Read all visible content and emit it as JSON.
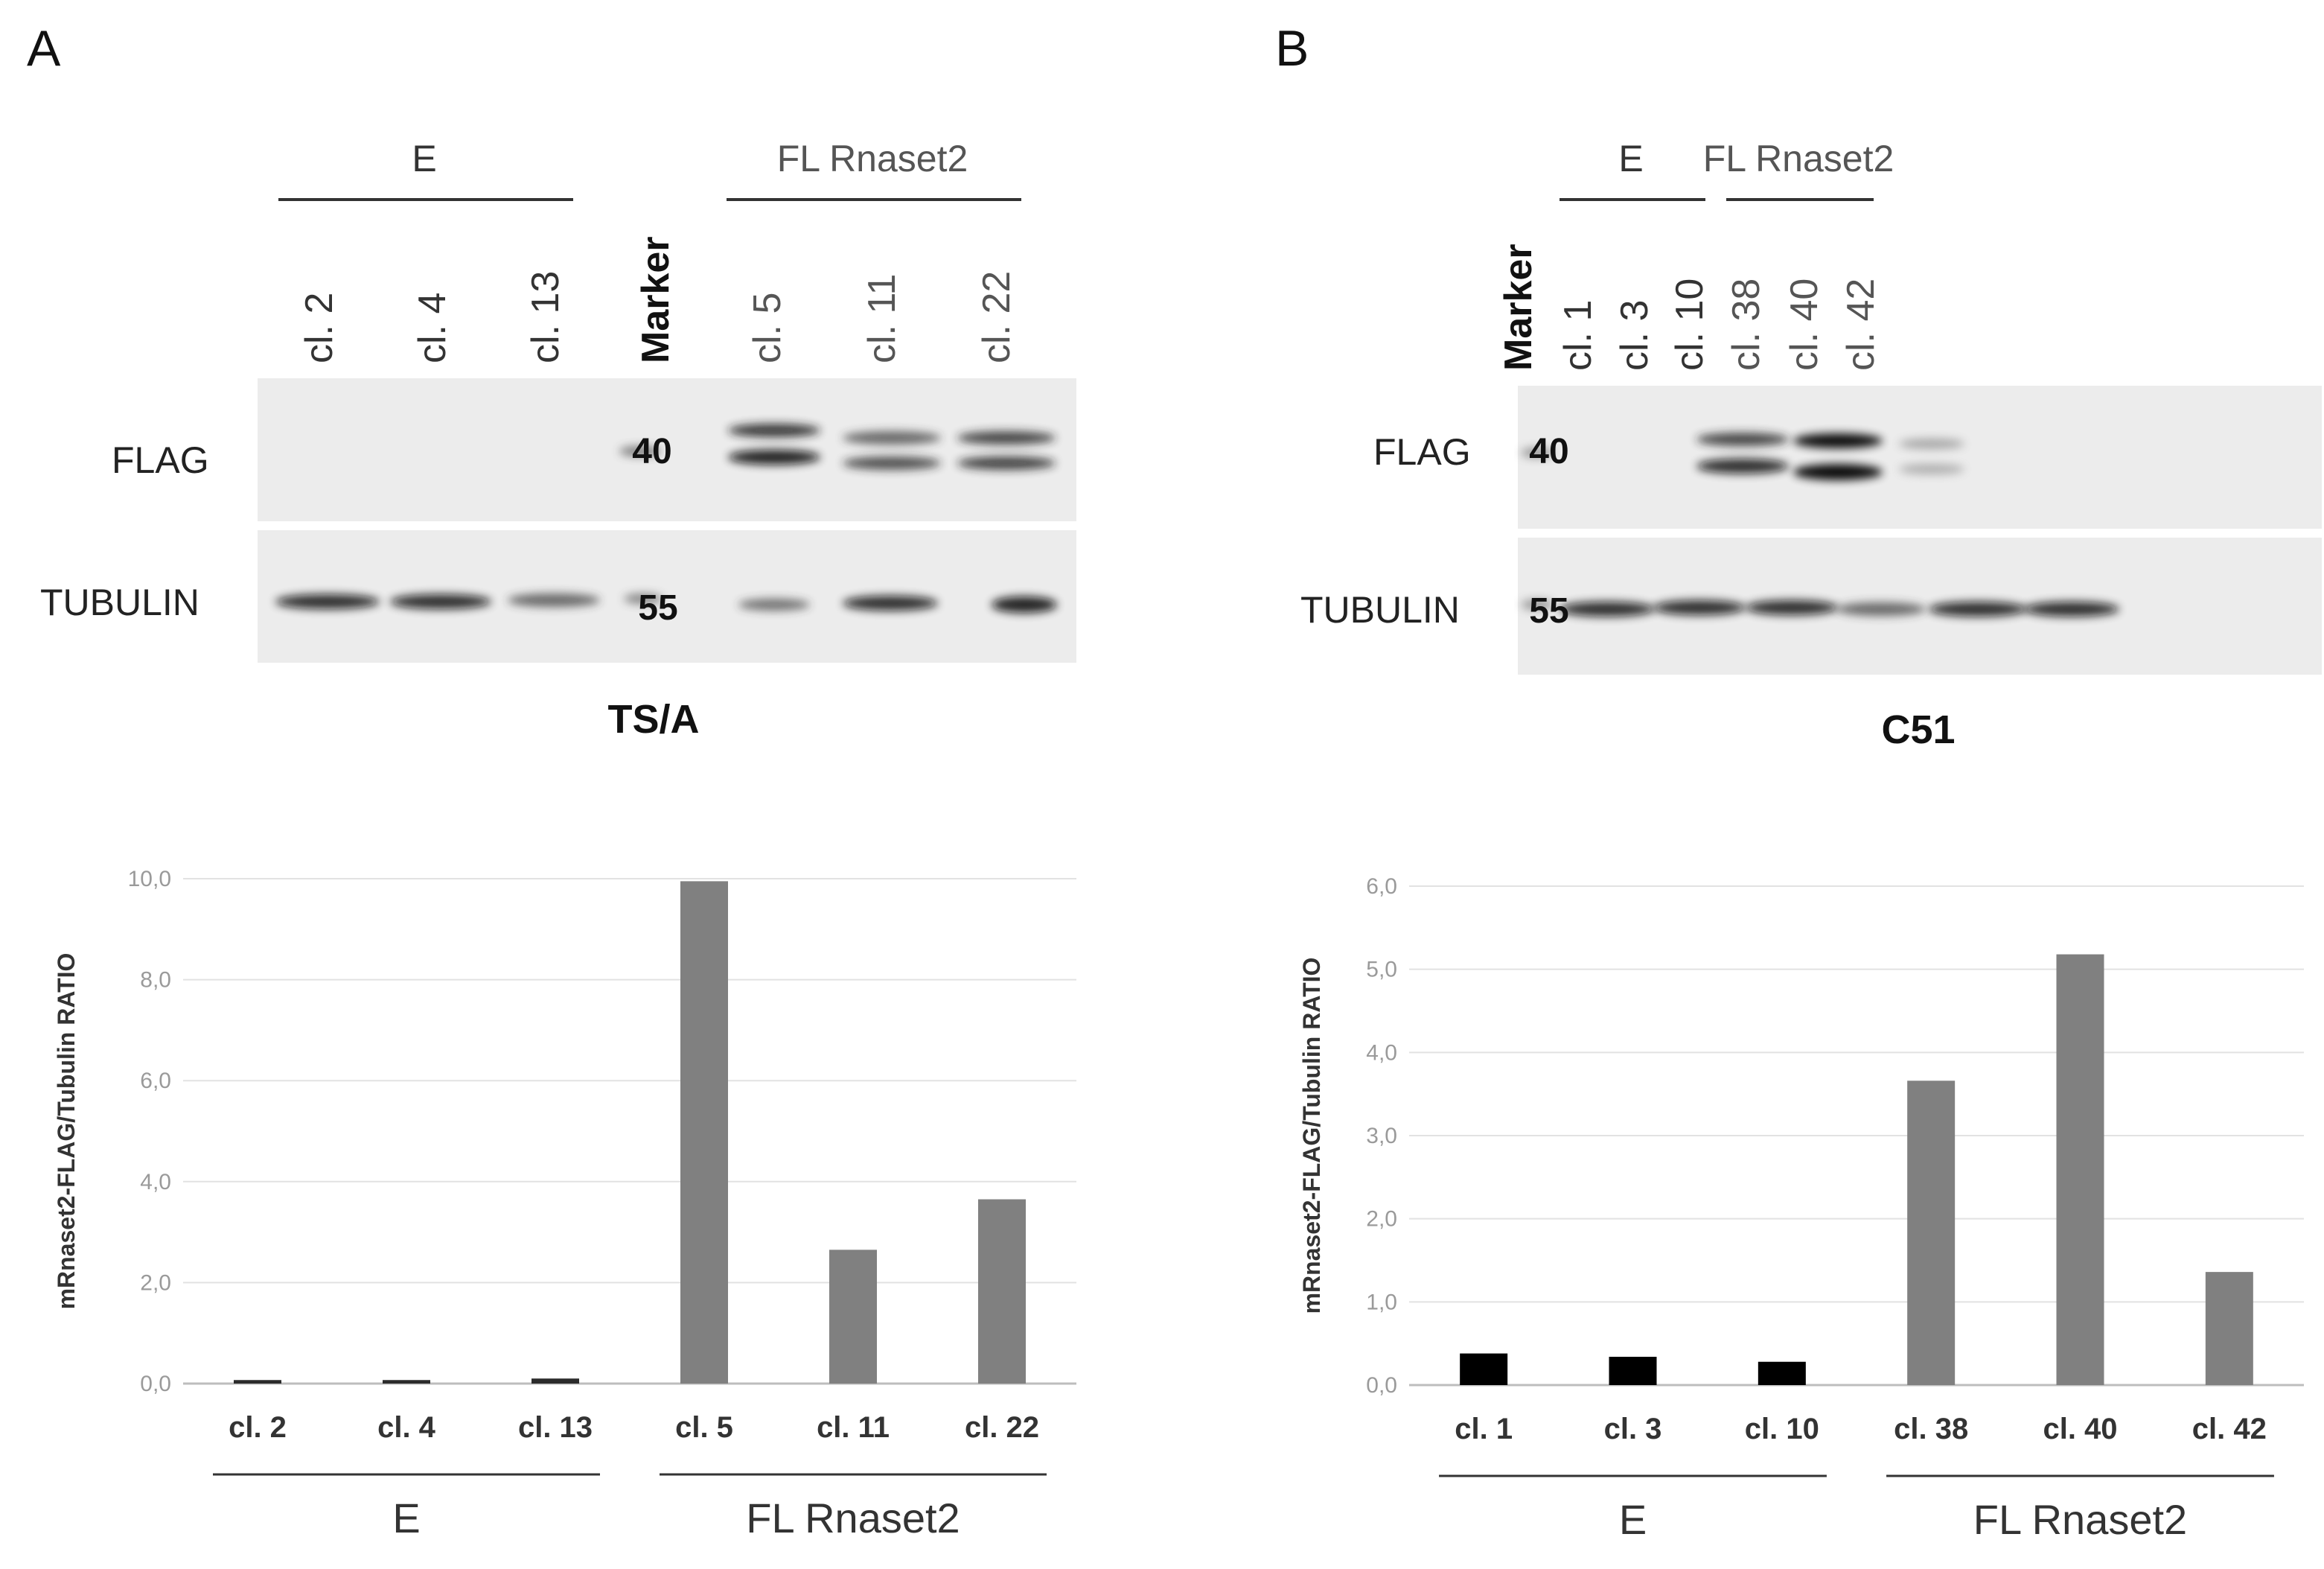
{
  "panels": [
    {
      "letter": "A",
      "blot": {
        "group_labels": [
          "E",
          "FL Rnaset2"
        ],
        "lanes": [
          "cl. 2",
          "cl. 4",
          "cl. 13",
          "Marker",
          "cl. 5",
          "cl. 11",
          "cl. 22"
        ],
        "row_labels": [
          "FLAG",
          "TUBULIN"
        ],
        "marker_values": [
          "40",
          "55"
        ],
        "cell_line": "TS/A"
      },
      "chart_data": {
        "type": "bar",
        "categories": [
          "cl. 2",
          "cl. 4",
          "cl. 13",
          "cl. 5",
          "cl. 11",
          "cl. 22"
        ],
        "values": [
          0.07,
          0.07,
          0.1,
          9.95,
          2.65,
          3.65
        ],
        "ylabel": "mRnaset2-FLAG/Tubulin RATIO",
        "ylim": [
          0,
          10
        ],
        "yticks": [
          "0,0",
          "2,0",
          "4,0",
          "6,0",
          "8,0",
          "10,0"
        ],
        "groups": [
          "E",
          "FL Rnaset2"
        ],
        "colors": {
          "E": "#2b2b2b",
          "FL Rnaset2": "#808080"
        },
        "grid": true
      }
    },
    {
      "letter": "B",
      "blot": {
        "group_labels": [
          "E",
          "FL Rnaset2"
        ],
        "lanes": [
          "Marker",
          "cl. 1",
          "cl. 3",
          "cl. 10",
          "cl. 38",
          "cl. 40",
          "cl. 42"
        ],
        "row_labels": [
          "FLAG",
          "TUBULIN"
        ],
        "marker_values": [
          "40",
          "55"
        ],
        "cell_line": "C51"
      },
      "chart_data": {
        "type": "bar",
        "categories": [
          "cl. 1",
          "cl. 3",
          "cl. 10",
          "cl. 38",
          "cl. 40",
          "cl. 42"
        ],
        "values": [
          0.38,
          0.34,
          0.28,
          3.66,
          5.18,
          1.36
        ],
        "ylabel": "mRnaset2-FLAG/Tubulin RATIO",
        "ylim": [
          0,
          6
        ],
        "yticks": [
          "0,0",
          "1,0",
          "2,0",
          "3,0",
          "4,0",
          "5,0",
          "6,0"
        ],
        "groups": [
          "E",
          "FL Rnaset2"
        ],
        "colors": {
          "E": "#000000",
          "FL Rnaset2": "#808080"
        },
        "grid": true
      }
    }
  ]
}
